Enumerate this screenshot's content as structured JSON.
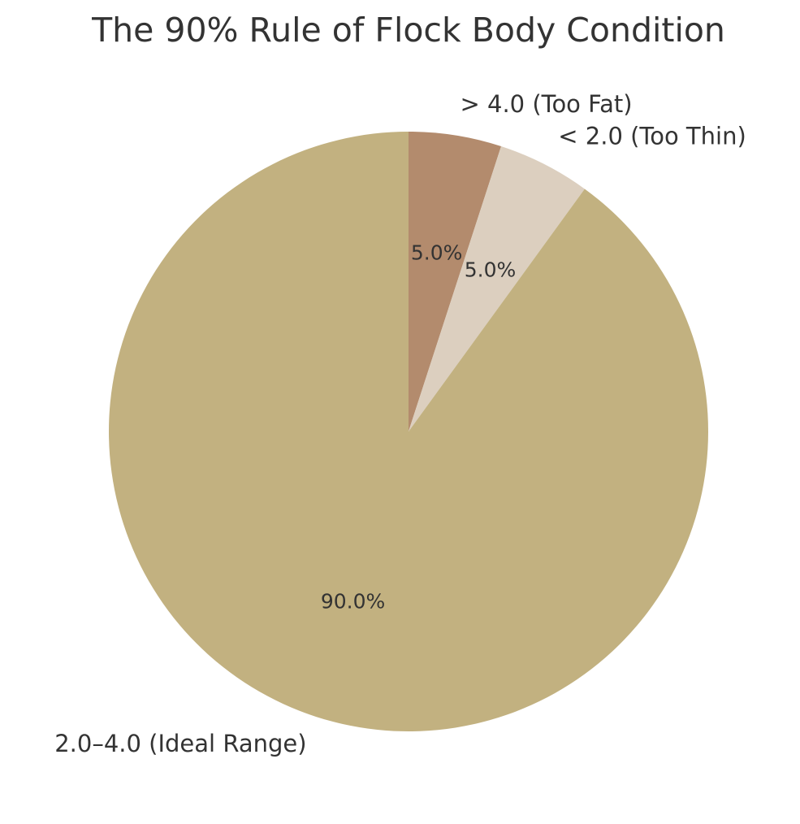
{
  "chart_data": {
    "type": "pie",
    "title": "The 90% Rule of Flock Body Condition",
    "categories": [
      "> 4.0 (Too Fat)",
      "< 2.0 (Too Thin)",
      "2.0–4.0 (Ideal Range)"
    ],
    "values": [
      5,
      5,
      90
    ],
    "value_labels": [
      "5.0%",
      "5.0%",
      "90.0%"
    ],
    "colors": [
      "#b38b6d",
      "#dccfbf",
      "#c2b180"
    ]
  }
}
